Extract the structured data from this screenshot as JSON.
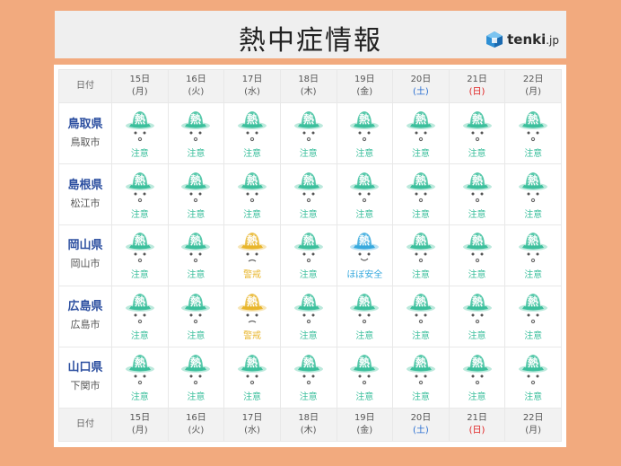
{
  "title": "熱中症情報",
  "logo": {
    "brand": "tenki",
    "suffix": ".jp"
  },
  "colors": {
    "background": "#f2aa7e",
    "caution": "#3bbf9c",
    "warning": "#e8b52a",
    "safe": "#37a9dd",
    "pref_label": "#2c4fa0",
    "saturday": "#2a6fd1",
    "sunday": "#e02020"
  },
  "header": {
    "corner": "日付",
    "days": [
      {
        "date": "15日",
        "dow": "(月)",
        "type": "weekday"
      },
      {
        "date": "16日",
        "dow": "(火)",
        "type": "weekday"
      },
      {
        "date": "17日",
        "dow": "(水)",
        "type": "weekday"
      },
      {
        "date": "18日",
        "dow": "(木)",
        "type": "weekday"
      },
      {
        "date": "19日",
        "dow": "(金)",
        "type": "weekday"
      },
      {
        "date": "20日",
        "dow": "(土)",
        "type": "sat"
      },
      {
        "date": "21日",
        "dow": "(日)",
        "type": "sun"
      },
      {
        "date": "22日",
        "dow": "(月)",
        "type": "weekday"
      }
    ]
  },
  "rows": [
    {
      "pref": "鳥取県",
      "city": "鳥取市",
      "levels": [
        "caution",
        "caution",
        "caution",
        "caution",
        "caution",
        "caution",
        "caution",
        "caution"
      ],
      "labels": [
        "注意",
        "注意",
        "注意",
        "注意",
        "注意",
        "注意",
        "注意",
        "注意"
      ]
    },
    {
      "pref": "島根県",
      "city": "松江市",
      "levels": [
        "caution",
        "caution",
        "caution",
        "caution",
        "caution",
        "caution",
        "caution",
        "caution"
      ],
      "labels": [
        "注意",
        "注意",
        "注意",
        "注意",
        "注意",
        "注意",
        "注意",
        "注意"
      ]
    },
    {
      "pref": "岡山県",
      "city": "岡山市",
      "levels": [
        "caution",
        "caution",
        "warning",
        "caution",
        "safe",
        "caution",
        "caution",
        "caution"
      ],
      "labels": [
        "注意",
        "注意",
        "警戒",
        "注意",
        "ほぼ安全",
        "注意",
        "注意",
        "注意"
      ]
    },
    {
      "pref": "広島県",
      "city": "広島市",
      "levels": [
        "caution",
        "caution",
        "warning",
        "caution",
        "caution",
        "caution",
        "caution",
        "caution"
      ],
      "labels": [
        "注意",
        "注意",
        "警戒",
        "注意",
        "注意",
        "注意",
        "注意",
        "注意"
      ]
    },
    {
      "pref": "山口県",
      "city": "下関市",
      "levels": [
        "caution",
        "caution",
        "caution",
        "caution",
        "caution",
        "caution",
        "caution",
        "caution"
      ],
      "labels": [
        "注意",
        "注意",
        "注意",
        "注意",
        "注意",
        "注意",
        "注意",
        "注意"
      ]
    }
  ],
  "footer": {
    "corner": "日付",
    "days": [
      {
        "date": "15日",
        "dow": "(月)",
        "type": "weekday"
      },
      {
        "date": "16日",
        "dow": "(火)",
        "type": "weekday"
      },
      {
        "date": "17日",
        "dow": "(水)",
        "type": "weekday"
      },
      {
        "date": "18日",
        "dow": "(木)",
        "type": "weekday"
      },
      {
        "date": "19日",
        "dow": "(金)",
        "type": "weekday"
      },
      {
        "date": "20日",
        "dow": "(土)",
        "type": "sat"
      },
      {
        "date": "21日",
        "dow": "(日)",
        "type": "sun"
      },
      {
        "date": "22日",
        "dow": "(月)",
        "type": "weekday"
      }
    ]
  }
}
